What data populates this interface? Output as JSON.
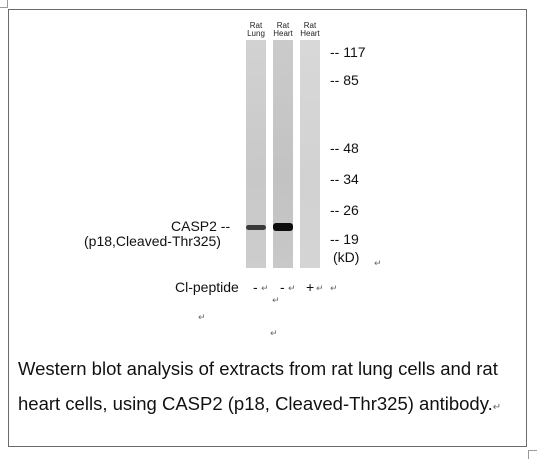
{
  "lanes": [
    {
      "line1": "Rat",
      "line2": "Lung"
    },
    {
      "line1": "Rat",
      "line2": "Heart"
    },
    {
      "line1": "Rat",
      "line2": "Heart"
    }
  ],
  "markers": [
    "-- 117",
    "-- 85",
    "-- 48",
    "-- 34",
    "-- 26",
    "-- 19"
  ],
  "unit": "(kD)",
  "target": {
    "name": "CASP2 --",
    "description": "(p18,Cleaved-Thr325)"
  },
  "peptide": {
    "label": "Cl-peptide",
    "signs": [
      "-",
      "-",
      "+"
    ]
  },
  "paragraph_mark": "↵",
  "caption": "Western blot analysis of extracts from rat lung cells and rat heart cells, using CASP2 (p18, Cleaved-Thr325) antibody."
}
